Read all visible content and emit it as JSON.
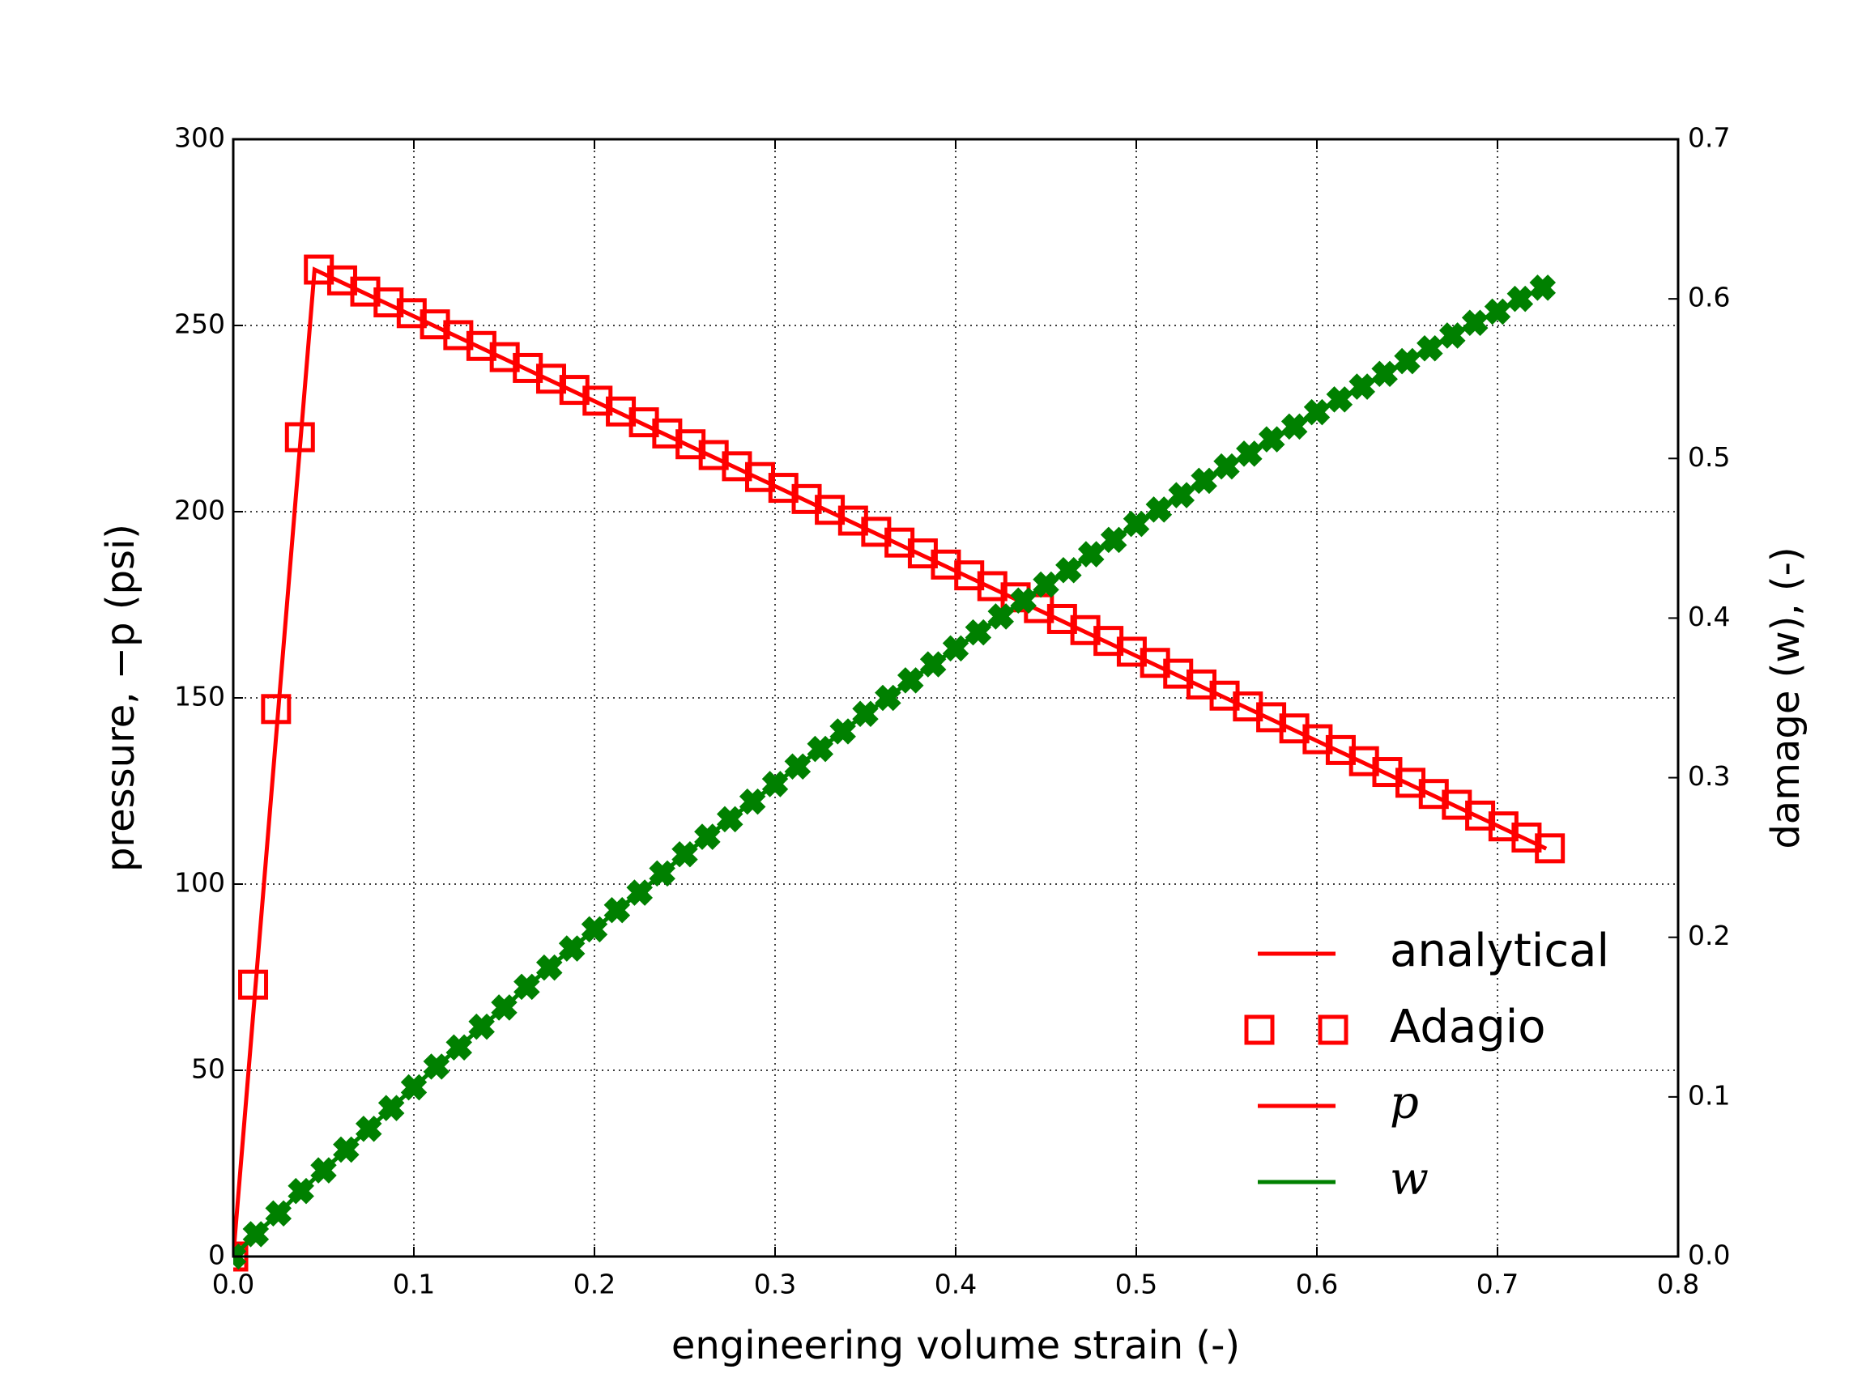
{
  "chart_data": {
    "type": "line",
    "xlabel": "engineering volume strain (-)",
    "ylabel": "pressure, −p (psi)",
    "y2label": "damage (w), (-)",
    "xlim": [
      0,
      0.8
    ],
    "ylim": [
      0,
      300
    ],
    "y2lim": [
      0,
      0.7
    ],
    "xticks": [
      {
        "value": 0,
        "label": "0.0"
      },
      0.1,
      0.2,
      0.3,
      0.4,
      0.5,
      0.6,
      0.7,
      0.8
    ],
    "yticks": [
      0,
      50,
      100,
      150,
      200,
      250,
      300
    ],
    "y2ticks": [
      {
        "value": 0,
        "label": "0.0"
      },
      0.1,
      0.2,
      0.3,
      0.4,
      0.5,
      0.6,
      0.7
    ],
    "grid": true,
    "series": [
      {
        "color": "#ff0000",
        "style": "line",
        "axis": "y",
        "x": [
          0,
          0.045,
          0.727
        ],
        "values": [
          0,
          265,
          109.5
        ]
      },
      {
        "color": "#ff0000",
        "style": "square",
        "axis": "y",
        "x": [
          0,
          0.011,
          0.0237,
          0.0369,
          0.0474,
          0.0603,
          0.0731,
          0.086,
          0.0988,
          0.1117,
          0.1246,
          0.1374,
          0.1503,
          0.1631,
          0.176,
          0.1889,
          0.2017,
          0.2146,
          0.2274,
          0.2403,
          0.2532,
          0.266,
          0.2789,
          0.2917,
          0.3046,
          0.3175,
          0.3303,
          0.3432,
          0.356,
          0.3689,
          0.3818,
          0.3946,
          0.4075,
          0.4203,
          0.4332,
          0.4461,
          0.4589,
          0.4718,
          0.4846,
          0.4975,
          0.5104,
          0.5232,
          0.5361,
          0.5489,
          0.5618,
          0.5747,
          0.5875,
          0.6004,
          0.6132,
          0.6261,
          0.639,
          0.6518,
          0.6647,
          0.6775,
          0.6904,
          0.7033,
          0.7161,
          0.729
        ],
        "values": [
          0,
          73,
          147,
          220,
          265,
          262.1,
          259.1,
          256.2,
          253.3,
          250.3,
          247.4,
          244.5,
          241.5,
          238.6,
          235.7,
          232.7,
          229.8,
          226.9,
          224.0,
          221.0,
          218.1,
          215.2,
          212.2,
          209.3,
          206.4,
          203.4,
          200.5,
          197.6,
          194.6,
          191.7,
          188.8,
          185.8,
          182.9,
          180.0,
          177.0,
          174.1,
          171.2,
          168.2,
          165.3,
          162.4,
          159.4,
          156.5,
          153.6,
          150.6,
          147.7,
          144.8,
          141.8,
          138.9,
          136.0,
          133.0,
          130.1,
          127.2,
          124.2,
          121.3,
          118.4,
          115.5,
          112.5,
          109.6
        ]
      },
      {
        "color": "#008000",
        "style": "line-star",
        "axis": "y2",
        "x": [
          0,
          0.0125,
          0.025,
          0.0375,
          0.05,
          0.0625,
          0.075,
          0.0875,
          0.1,
          0.1125,
          0.125,
          0.1375,
          0.15,
          0.1625,
          0.175,
          0.1875,
          0.2,
          0.2125,
          0.225,
          0.2375,
          0.25,
          0.2625,
          0.275,
          0.2875,
          0.3,
          0.3125,
          0.325,
          0.3375,
          0.35,
          0.3625,
          0.375,
          0.3875,
          0.4,
          0.4125,
          0.425,
          0.4375,
          0.45,
          0.4625,
          0.475,
          0.4875,
          0.5,
          0.5125,
          0.525,
          0.5375,
          0.55,
          0.5625,
          0.575,
          0.5875,
          0.6,
          0.6125,
          0.625,
          0.6375,
          0.65,
          0.6625,
          0.675,
          0.6875,
          0.7,
          0.7125,
          0.725
        ],
        "values": [
          0,
          0.014,
          0.027,
          0.041,
          0.054,
          0.067,
          0.08,
          0.093,
          0.106,
          0.119,
          0.131,
          0.144,
          0.156,
          0.169,
          0.181,
          0.193,
          0.205,
          0.217,
          0.228,
          0.24,
          0.252,
          0.263,
          0.274,
          0.285,
          0.296,
          0.307,
          0.318,
          0.329,
          0.34,
          0.35,
          0.361,
          0.371,
          0.381,
          0.391,
          0.401,
          0.411,
          0.421,
          0.43,
          0.44,
          0.449,
          0.459,
          0.468,
          0.477,
          0.486,
          0.495,
          0.503,
          0.512,
          0.52,
          0.529,
          0.537,
          0.545,
          0.553,
          0.561,
          0.569,
          0.577,
          0.585,
          0.592,
          0.6,
          0.607
        ]
      }
    ],
    "legend": {
      "loc": "lower right",
      "entries": [
        {
          "label": "analytical",
          "color": "#ff0000",
          "style": "line",
          "italic": false
        },
        {
          "label": "Adagio",
          "color": "#ff0000",
          "style": "square",
          "italic": false
        },
        {
          "label": "p",
          "color": "#ff0000",
          "style": "line",
          "italic": true
        },
        {
          "label": "w",
          "color": "#008000",
          "style": "line",
          "italic": true
        }
      ]
    }
  }
}
